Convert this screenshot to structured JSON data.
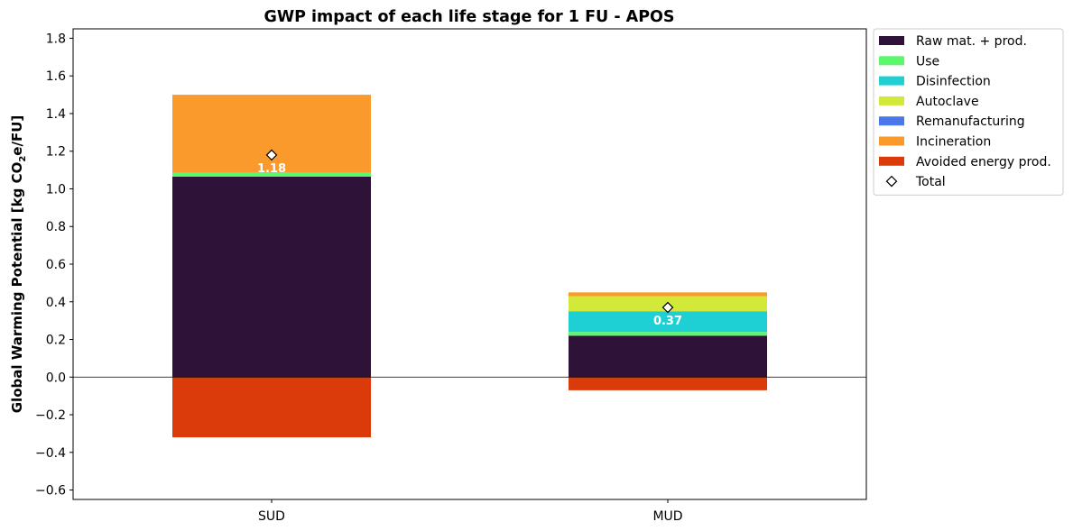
{
  "chart_data": {
    "type": "bar",
    "stacked": true,
    "title": "GWP impact of each life stage for 1 FU - APOS",
    "ylabel_parts": [
      "Global Warming Potential [kg CO",
      "2",
      "e/FU]"
    ],
    "xlabel": "",
    "categories": [
      "SUD",
      "MUD"
    ],
    "ylim": [
      -0.65,
      1.85
    ],
    "yticks": [
      -0.6,
      -0.4,
      -0.2,
      0.0,
      0.2,
      0.4,
      0.6,
      0.8,
      1.0,
      1.2,
      1.4,
      1.6,
      1.8
    ],
    "ytick_labels": [
      "−0.6",
      "−0.4",
      "−0.2",
      "0.0",
      "0.2",
      "0.4",
      "0.6",
      "0.8",
      "1.0",
      "1.2",
      "1.4",
      "1.6",
      "1.8"
    ],
    "zero_line": true,
    "legend_position": "outside upper right",
    "series": [
      {
        "name": "Raw mat. + prod.",
        "color": "#2f1238",
        "values": [
          1.065,
          0.22
        ]
      },
      {
        "name": "Use",
        "color": "#5cf76a",
        "values": [
          0.02,
          0.02
        ]
      },
      {
        "name": "Disinfection",
        "color": "#1ecfd4",
        "values": [
          0.0,
          0.11
        ]
      },
      {
        "name": "Autoclave",
        "color": "#d2e93a",
        "values": [
          0.0,
          0.08
        ]
      },
      {
        "name": "Remanufacturing",
        "color": "#4a78e8",
        "values": [
          0.0,
          0.0
        ]
      },
      {
        "name": "Incineration",
        "color": "#fa9a2d",
        "values": [
          0.415,
          0.02
        ]
      },
      {
        "name": "Avoided energy prod.",
        "color": "#db3a0b",
        "values": [
          -0.32,
          -0.07
        ]
      }
    ],
    "totals": {
      "name": "Total",
      "values": [
        1.18,
        0.37
      ],
      "labels": [
        "1.18",
        "0.37"
      ]
    }
  }
}
